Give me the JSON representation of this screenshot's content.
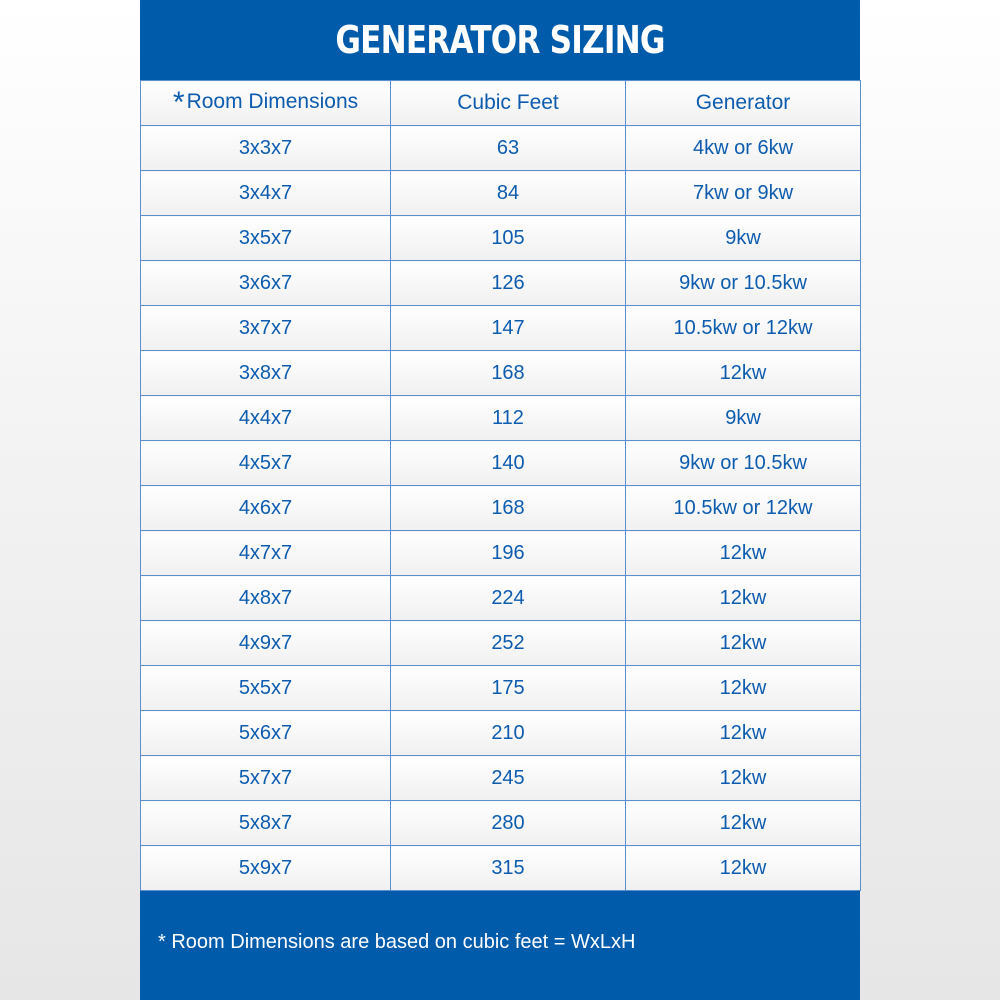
{
  "title": "GENERATOR SIZING",
  "headers": {
    "star": "*",
    "room": "Room Dimensions",
    "cubic": "Cubic Feet",
    "generator": "Generator"
  },
  "rows": [
    [
      "3x3x7",
      "63",
      "4kw or 6kw"
    ],
    [
      "3x4x7",
      "84",
      "7kw or 9kw"
    ],
    [
      "3x5x7",
      "105",
      "9kw"
    ],
    [
      "3x6x7",
      "126",
      "9kw or 10.5kw"
    ],
    [
      "3x7x7",
      "147",
      "10.5kw or 12kw"
    ],
    [
      "3x8x7",
      "168",
      "12kw"
    ],
    [
      "4x4x7",
      "112",
      "9kw"
    ],
    [
      "4x5x7",
      "140",
      "9kw or 10.5kw"
    ],
    [
      "4x6x7",
      "168",
      "10.5kw or 12kw"
    ],
    [
      "4x7x7",
      "196",
      "12kw"
    ],
    [
      "4x8x7",
      "224",
      "12kw"
    ],
    [
      "4x9x7",
      "252",
      "12kw"
    ],
    [
      "5x5x7",
      "175",
      "12kw"
    ],
    [
      "5x6x7",
      "210",
      "12kw"
    ],
    [
      "5x7x7",
      "245",
      "12kw"
    ],
    [
      "5x8x7",
      "280",
      "12kw"
    ],
    [
      "5x9x7",
      "315",
      "12kw"
    ]
  ],
  "footnote": "* Room Dimensions are based on cubic feet = WxLxH",
  "colors": {
    "brand_blue": "#005baa",
    "text_blue": "#0d5cb0"
  }
}
